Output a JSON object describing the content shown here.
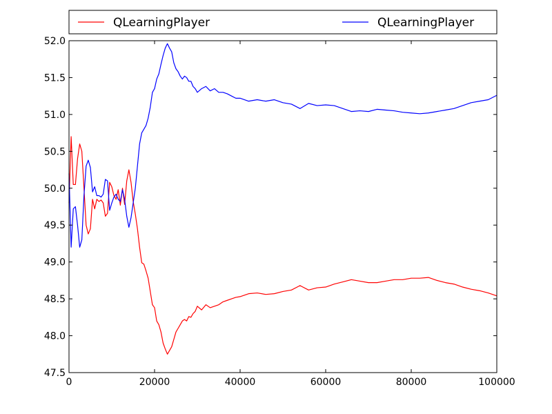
{
  "chart_data": {
    "type": "line",
    "title": "",
    "xlabel": "",
    "ylabel": "",
    "xlim": [
      0,
      100000
    ],
    "ylim": [
      47.5,
      52.0
    ],
    "grid": false,
    "legend": {
      "placement": "top, above plot, two columns"
    },
    "x_ticks": [
      "0",
      "20000",
      "40000",
      "60000",
      "80000",
      "100000"
    ],
    "y_ticks": [
      "47.5",
      "48.0",
      "48.5",
      "49.0",
      "49.5",
      "50.0",
      "50.5",
      "51.0",
      "51.5",
      "52.0"
    ],
    "series": [
      {
        "name": "QLearningPlayer",
        "color": "#ff0000",
        "x": [
          0,
          500,
          1000,
          1500,
          2000,
          2500,
          3000,
          3500,
          4000,
          4500,
          5000,
          5500,
          6000,
          6500,
          7000,
          7500,
          8000,
          8500,
          9000,
          9500,
          10000,
          10500,
          11000,
          11500,
          12000,
          12500,
          13000,
          13500,
          14000,
          14500,
          15000,
          15500,
          16000,
          16500,
          17000,
          17500,
          18000,
          18500,
          19000,
          19500,
          20000,
          20500,
          21000,
          21500,
          22000,
          22500,
          23000,
          23500,
          24000,
          24500,
          25000,
          25500,
          26000,
          26500,
          27000,
          27500,
          28000,
          28500,
          29000,
          29500,
          30000,
          31000,
          32000,
          33000,
          34000,
          35000,
          36000,
          37000,
          38000,
          39000,
          40000,
          42000,
          44000,
          46000,
          48000,
          50000,
          52000,
          54000,
          56000,
          58000,
          60000,
          62000,
          64000,
          66000,
          68000,
          70000,
          72000,
          74000,
          76000,
          78000,
          80000,
          82000,
          84000,
          86000,
          88000,
          90000,
          92000,
          94000,
          96000,
          98000,
          100000
        ],
        "values": [
          49.8,
          50.7,
          50.05,
          50.05,
          50.4,
          50.6,
          50.5,
          50.0,
          49.5,
          49.38,
          49.45,
          49.85,
          49.72,
          49.85,
          49.82,
          49.84,
          49.8,
          49.62,
          49.66,
          50.08,
          50.02,
          49.9,
          49.85,
          49.98,
          49.77,
          50.0,
          49.78,
          50.1,
          50.25,
          50.08,
          49.82,
          49.65,
          49.45,
          49.2,
          48.99,
          48.97,
          48.88,
          48.78,
          48.6,
          48.42,
          48.38,
          48.2,
          48.15,
          48.05,
          47.9,
          47.82,
          47.75,
          47.8,
          47.85,
          47.95,
          48.05,
          48.1,
          48.15,
          48.2,
          48.22,
          48.2,
          48.26,
          48.25,
          48.3,
          48.33,
          48.4,
          48.35,
          48.42,
          48.38,
          48.4,
          48.42,
          48.46,
          48.48,
          48.5,
          48.52,
          48.53,
          48.57,
          48.58,
          48.56,
          48.57,
          48.6,
          48.62,
          48.68,
          48.62,
          48.65,
          48.66,
          48.7,
          48.73,
          48.76,
          48.74,
          48.72,
          48.72,
          48.74,
          48.76,
          48.76,
          48.78,
          48.78,
          48.79,
          48.75,
          48.72,
          48.7,
          48.66,
          48.63,
          48.61,
          48.58,
          48.54
        ]
      },
      {
        "name": "QLearningPlayer",
        "color": "#0000ff",
        "x": [
          0,
          500,
          1000,
          1500,
          2000,
          2500,
          3000,
          3500,
          4000,
          4500,
          5000,
          5500,
          6000,
          6500,
          7000,
          7500,
          8000,
          8500,
          9000,
          9500,
          10000,
          10500,
          11000,
          11500,
          12000,
          12500,
          13000,
          13500,
          14000,
          14500,
          15000,
          15500,
          16000,
          16500,
          17000,
          17500,
          18000,
          18500,
          19000,
          19500,
          20000,
          20500,
          21000,
          21500,
          22000,
          22500,
          23000,
          23500,
          24000,
          24500,
          25000,
          25500,
          26000,
          26500,
          27000,
          27500,
          28000,
          28500,
          29000,
          29500,
          30000,
          31000,
          32000,
          33000,
          34000,
          35000,
          36000,
          37000,
          38000,
          39000,
          40000,
          42000,
          44000,
          46000,
          48000,
          50000,
          52000,
          54000,
          56000,
          58000,
          60000,
          62000,
          64000,
          66000,
          68000,
          70000,
          72000,
          74000,
          76000,
          78000,
          80000,
          82000,
          84000,
          86000,
          88000,
          90000,
          92000,
          94000,
          96000,
          98000,
          100000
        ],
        "values": [
          50.2,
          49.2,
          49.72,
          49.75,
          49.5,
          49.2,
          49.3,
          49.9,
          50.3,
          50.38,
          50.28,
          49.95,
          50.02,
          49.9,
          49.9,
          49.88,
          49.92,
          50.12,
          50.1,
          49.7,
          49.8,
          49.88,
          49.92,
          49.85,
          49.82,
          49.98,
          49.85,
          49.62,
          49.47,
          49.6,
          49.8,
          50.0,
          50.3,
          50.6,
          50.75,
          50.8,
          50.85,
          50.95,
          51.1,
          51.3,
          51.35,
          51.48,
          51.55,
          51.68,
          51.8,
          51.9,
          51.96,
          51.9,
          51.85,
          51.7,
          51.62,
          51.58,
          51.52,
          51.48,
          51.52,
          51.5,
          51.45,
          51.45,
          51.38,
          51.35,
          51.3,
          51.35,
          51.38,
          51.32,
          51.35,
          51.3,
          51.3,
          51.28,
          51.25,
          51.22,
          51.22,
          51.18,
          51.2,
          51.18,
          51.2,
          51.16,
          51.14,
          51.08,
          51.15,
          51.12,
          51.13,
          51.12,
          51.08,
          51.04,
          51.05,
          51.04,
          51.07,
          51.06,
          51.05,
          51.03,
          51.02,
          51.01,
          51.02,
          51.04,
          51.06,
          51.08,
          51.12,
          51.16,
          51.18,
          51.2,
          51.26
        ]
      }
    ]
  }
}
